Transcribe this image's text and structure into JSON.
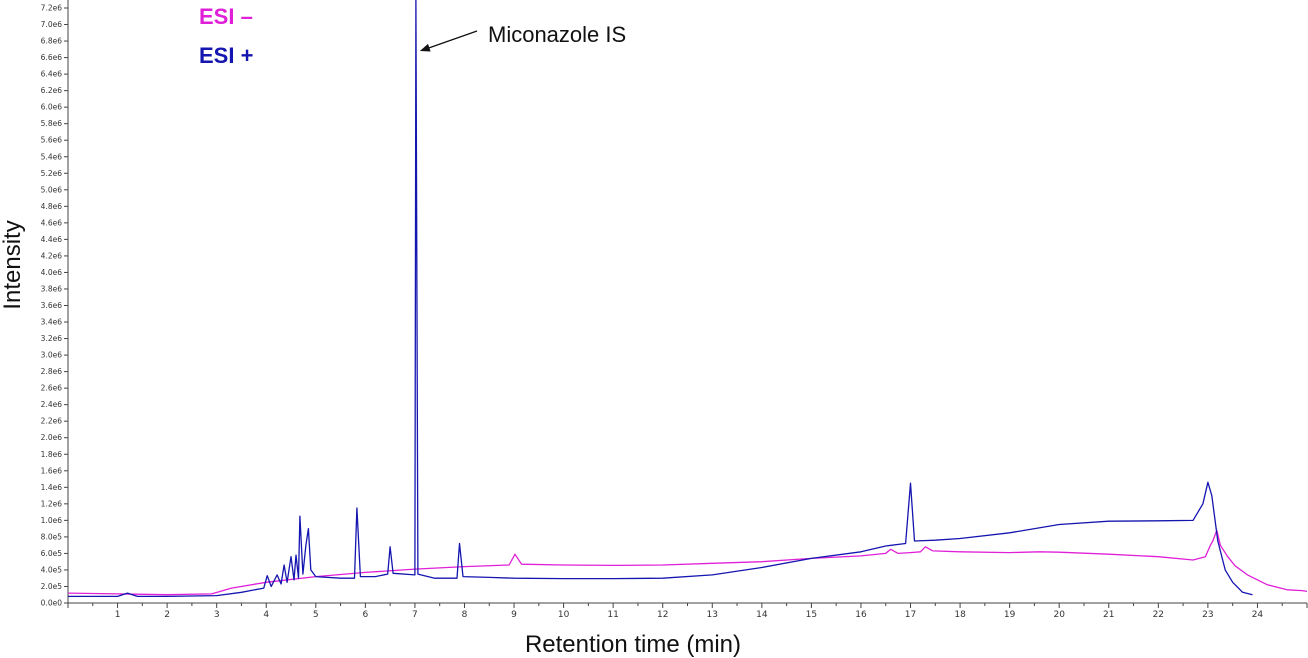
{
  "chart_data": {
    "type": "line",
    "xlabel": "Retention time (min)",
    "ylabel": "Intensity",
    "xlim": [
      0,
      25
    ],
    "ylim": [
      0,
      7200000
    ],
    "x_ticks": [
      1,
      2,
      3,
      4,
      5,
      6,
      7,
      8,
      9,
      10,
      11,
      12,
      13,
      14,
      15,
      16,
      17,
      18,
      19,
      20,
      21,
      22,
      23,
      24
    ],
    "y_ticks": [
      0,
      200000,
      400000,
      600000,
      800000,
      1000000,
      1200000,
      1400000,
      1600000,
      1800000,
      2000000,
      2200000,
      2400000,
      2600000,
      2800000,
      3000000,
      3200000,
      3400000,
      3600000,
      3800000,
      4000000,
      4200000,
      4400000,
      4600000,
      4800000,
      5000000,
      5200000,
      5400000,
      5600000,
      5800000,
      6000000,
      6200000,
      6400000,
      6600000,
      6800000,
      7000000,
      7200000
    ],
    "y_tick_labels": [
      "0.0e0",
      "2.0e5",
      "4.0e5",
      "6.0e5",
      "8.0e5",
      "1.0e6",
      "1.2e6",
      "1.4e6",
      "1.6e6",
      "1.8e6",
      "2.0e6",
      "2.2e6",
      "2.4e6",
      "2.6e6",
      "2.8e6",
      "3.0e6",
      "3.2e6",
      "3.4e6",
      "3.6e6",
      "3.8e6",
      "4.0e6",
      "4.2e6",
      "4.4e6",
      "4.6e6",
      "4.8e6",
      "5.0e6",
      "5.2e6",
      "5.4e6",
      "5.6e6",
      "5.8e6",
      "6.0e6",
      "6.2e6",
      "6.4e6",
      "6.6e6",
      "6.8e6",
      "7.0e6",
      "7.2e6"
    ],
    "legend": [
      {
        "label": "ESI –",
        "color": "#e020d8"
      },
      {
        "label": "ESI +",
        "color": "#1515b0"
      }
    ],
    "legend_placement": "top-left",
    "grid": false,
    "series": [
      {
        "color": "#e020d8",
        "points": [
          [
            0,
            120000
          ],
          [
            1,
            110000
          ],
          [
            2,
            100000
          ],
          [
            2.9,
            110000
          ],
          [
            3.3,
            180000
          ],
          [
            4,
            250000
          ],
          [
            5,
            320000
          ],
          [
            6,
            370000
          ],
          [
            7,
            410000
          ],
          [
            8,
            440000
          ],
          [
            8.9,
            460000
          ],
          [
            9.02,
            590000
          ],
          [
            9.15,
            470000
          ],
          [
            10,
            460000
          ],
          [
            11,
            455000
          ],
          [
            12,
            460000
          ],
          [
            13,
            480000
          ],
          [
            14,
            500000
          ],
          [
            15,
            540000
          ],
          [
            16,
            570000
          ],
          [
            16.5,
            600000
          ],
          [
            16.6,
            650000
          ],
          [
            16.75,
            600000
          ],
          [
            17,
            610000
          ],
          [
            17.2,
            620000
          ],
          [
            17.3,
            680000
          ],
          [
            17.45,
            630000
          ],
          [
            18,
            620000
          ],
          [
            19,
            610000
          ],
          [
            19.6,
            620000
          ],
          [
            20,
            615000
          ],
          [
            21,
            590000
          ],
          [
            22,
            560000
          ],
          [
            22.7,
            520000
          ],
          [
            22.95,
            560000
          ],
          [
            23.05,
            700000
          ],
          [
            23.1,
            750000
          ],
          [
            23.18,
            880000
          ],
          [
            23.25,
            700000
          ],
          [
            23.4,
            560000
          ],
          [
            23.55,
            450000
          ],
          [
            23.8,
            340000
          ],
          [
            24.2,
            220000
          ],
          [
            24.6,
            160000
          ],
          [
            24.9,
            150000
          ],
          [
            25,
            140000
          ]
        ]
      },
      {
        "color": "#1515b0",
        "points": [
          [
            0,
            80000
          ],
          [
            1,
            80000
          ],
          [
            1.2,
            120000
          ],
          [
            1.4,
            80000
          ],
          [
            2,
            80000
          ],
          [
            3,
            90000
          ],
          [
            3.5,
            130000
          ],
          [
            3.95,
            180000
          ],
          [
            4.02,
            330000
          ],
          [
            4.1,
            200000
          ],
          [
            4.22,
            340000
          ],
          [
            4.3,
            230000
          ],
          [
            4.36,
            460000
          ],
          [
            4.42,
            250000
          ],
          [
            4.5,
            560000
          ],
          [
            4.56,
            280000
          ],
          [
            4.6,
            580000
          ],
          [
            4.65,
            300000
          ],
          [
            4.68,
            1050000
          ],
          [
            4.74,
            350000
          ],
          [
            4.8,
            700000
          ],
          [
            4.85,
            900000
          ],
          [
            4.9,
            400000
          ],
          [
            5,
            320000
          ],
          [
            5.5,
            300000
          ],
          [
            5.78,
            300000
          ],
          [
            5.83,
            1150000
          ],
          [
            5.9,
            320000
          ],
          [
            6.2,
            320000
          ],
          [
            6.45,
            350000
          ],
          [
            6.5,
            680000
          ],
          [
            6.56,
            360000
          ],
          [
            7.0,
            340000
          ],
          [
            7.02,
            7300000
          ],
          [
            7.06,
            350000
          ],
          [
            7.4,
            300000
          ],
          [
            7.85,
            300000
          ],
          [
            7.9,
            720000
          ],
          [
            7.97,
            320000
          ],
          [
            8.5,
            310000
          ],
          [
            9,
            300000
          ],
          [
            10,
            295000
          ],
          [
            11,
            295000
          ],
          [
            12,
            300000
          ],
          [
            13,
            340000
          ],
          [
            14,
            430000
          ],
          [
            15,
            540000
          ],
          [
            16,
            620000
          ],
          [
            16.5,
            690000
          ],
          [
            16.9,
            720000
          ],
          [
            17.0,
            1450000
          ],
          [
            17.08,
            750000
          ],
          [
            17.5,
            760000
          ],
          [
            18,
            780000
          ],
          [
            19,
            850000
          ],
          [
            20,
            950000
          ],
          [
            21,
            990000
          ],
          [
            22,
            995000
          ],
          [
            22.7,
            1000000
          ],
          [
            22.9,
            1200000
          ],
          [
            23.0,
            1460000
          ],
          [
            23.08,
            1300000
          ],
          [
            23.2,
            750000
          ],
          [
            23.35,
            400000
          ],
          [
            23.5,
            250000
          ],
          [
            23.7,
            130000
          ],
          [
            23.9,
            100000
          ]
        ]
      }
    ],
    "annotations": [
      {
        "text": "Miconazole IS",
        "arrow_to_x": 7.1,
        "arrow_to_y": 6680000
      }
    ]
  }
}
